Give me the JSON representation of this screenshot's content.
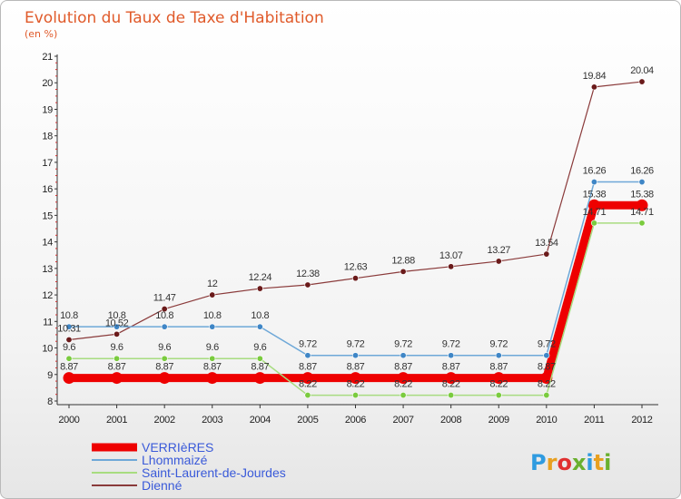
{
  "header": {
    "title": "Evolution du Taux de Taxe d'Habitation",
    "subtitle": "(en %)"
  },
  "logo": {
    "text": "Proxiti",
    "colors": [
      "#2f9be0",
      "#e8a020",
      "#e03030",
      "#6ab02e",
      "#2f9be0",
      "#e8a020",
      "#6ab02e"
    ]
  },
  "chart_data": {
    "type": "line",
    "title": "Evolution du Taux de Taxe d'Habitation",
    "subtitle": "(en %)",
    "x": [
      "2000",
      "2001",
      "2002",
      "2003",
      "2004",
      "2005",
      "2006",
      "2007",
      "2008",
      "2009",
      "2010",
      "2011",
      "2012"
    ],
    "y_ticks": [
      "8",
      "9",
      "10",
      "11",
      "12",
      "13",
      "14",
      "15",
      "16",
      "17",
      "18",
      "19",
      "20",
      "21"
    ],
    "ylim": [
      8,
      21
    ],
    "grid": false,
    "legend_position": "bottom-left",
    "series": [
      {
        "name": "VERRIèRES",
        "color": "#ee0000",
        "point_color": "#ee0000",
        "width": 9,
        "values": [
          8.87,
          8.87,
          8.87,
          8.87,
          8.87,
          8.87,
          8.87,
          8.87,
          8.87,
          8.87,
          8.87,
          15.38,
          15.38
        ],
        "labels": [
          "8.87",
          "8.87",
          "8.87",
          "8.87",
          "8.87",
          "8.87",
          "8.87",
          "8.87",
          "8.87",
          "8.87",
          "8.87",
          "15.38",
          "15.38"
        ]
      },
      {
        "name": "Lhommaizé",
        "color": "#6ea8d8",
        "point_color": "#3f86c6",
        "width": 1.5,
        "values": [
          10.8,
          10.8,
          10.8,
          10.8,
          10.8,
          9.72,
          9.72,
          9.72,
          9.72,
          9.72,
          9.72,
          16.26,
          16.26
        ],
        "labels": [
          "10.8",
          "10.8",
          "10.8",
          "10.8",
          "10.8",
          "9.72",
          "9.72",
          "9.72",
          "9.72",
          "9.72",
          "9.72",
          "16.26",
          "16.26"
        ]
      },
      {
        "name": "Saint-Laurent-de-Jourdes",
        "color": "#a8dc80",
        "point_color": "#7acb3e",
        "width": 1.5,
        "values": [
          9.6,
          9.6,
          9.6,
          9.6,
          9.6,
          8.22,
          8.22,
          8.22,
          8.22,
          8.22,
          8.22,
          14.71,
          14.71
        ],
        "labels": [
          "9.6",
          "9.6",
          "9.6",
          "9.6",
          "9.6",
          "8.22",
          "8.22",
          "8.22",
          "8.22",
          "8.22",
          "8.22",
          "14.71",
          "14.71"
        ]
      },
      {
        "name": "Dienné",
        "color": "#8a3a3a",
        "point_color": "#6a1a1a",
        "width": 1.2,
        "values": [
          10.31,
          10.52,
          11.47,
          12.0,
          12.24,
          12.38,
          12.63,
          12.88,
          13.07,
          13.27,
          13.54,
          19.84,
          20.04
        ],
        "labels": [
          "10.31",
          "10.52",
          "11.47",
          "12",
          "12.24",
          "12.38",
          "12.63",
          "12.88",
          "13.07",
          "13.27",
          "13.54",
          "19.84",
          "20.04"
        ]
      }
    ]
  }
}
